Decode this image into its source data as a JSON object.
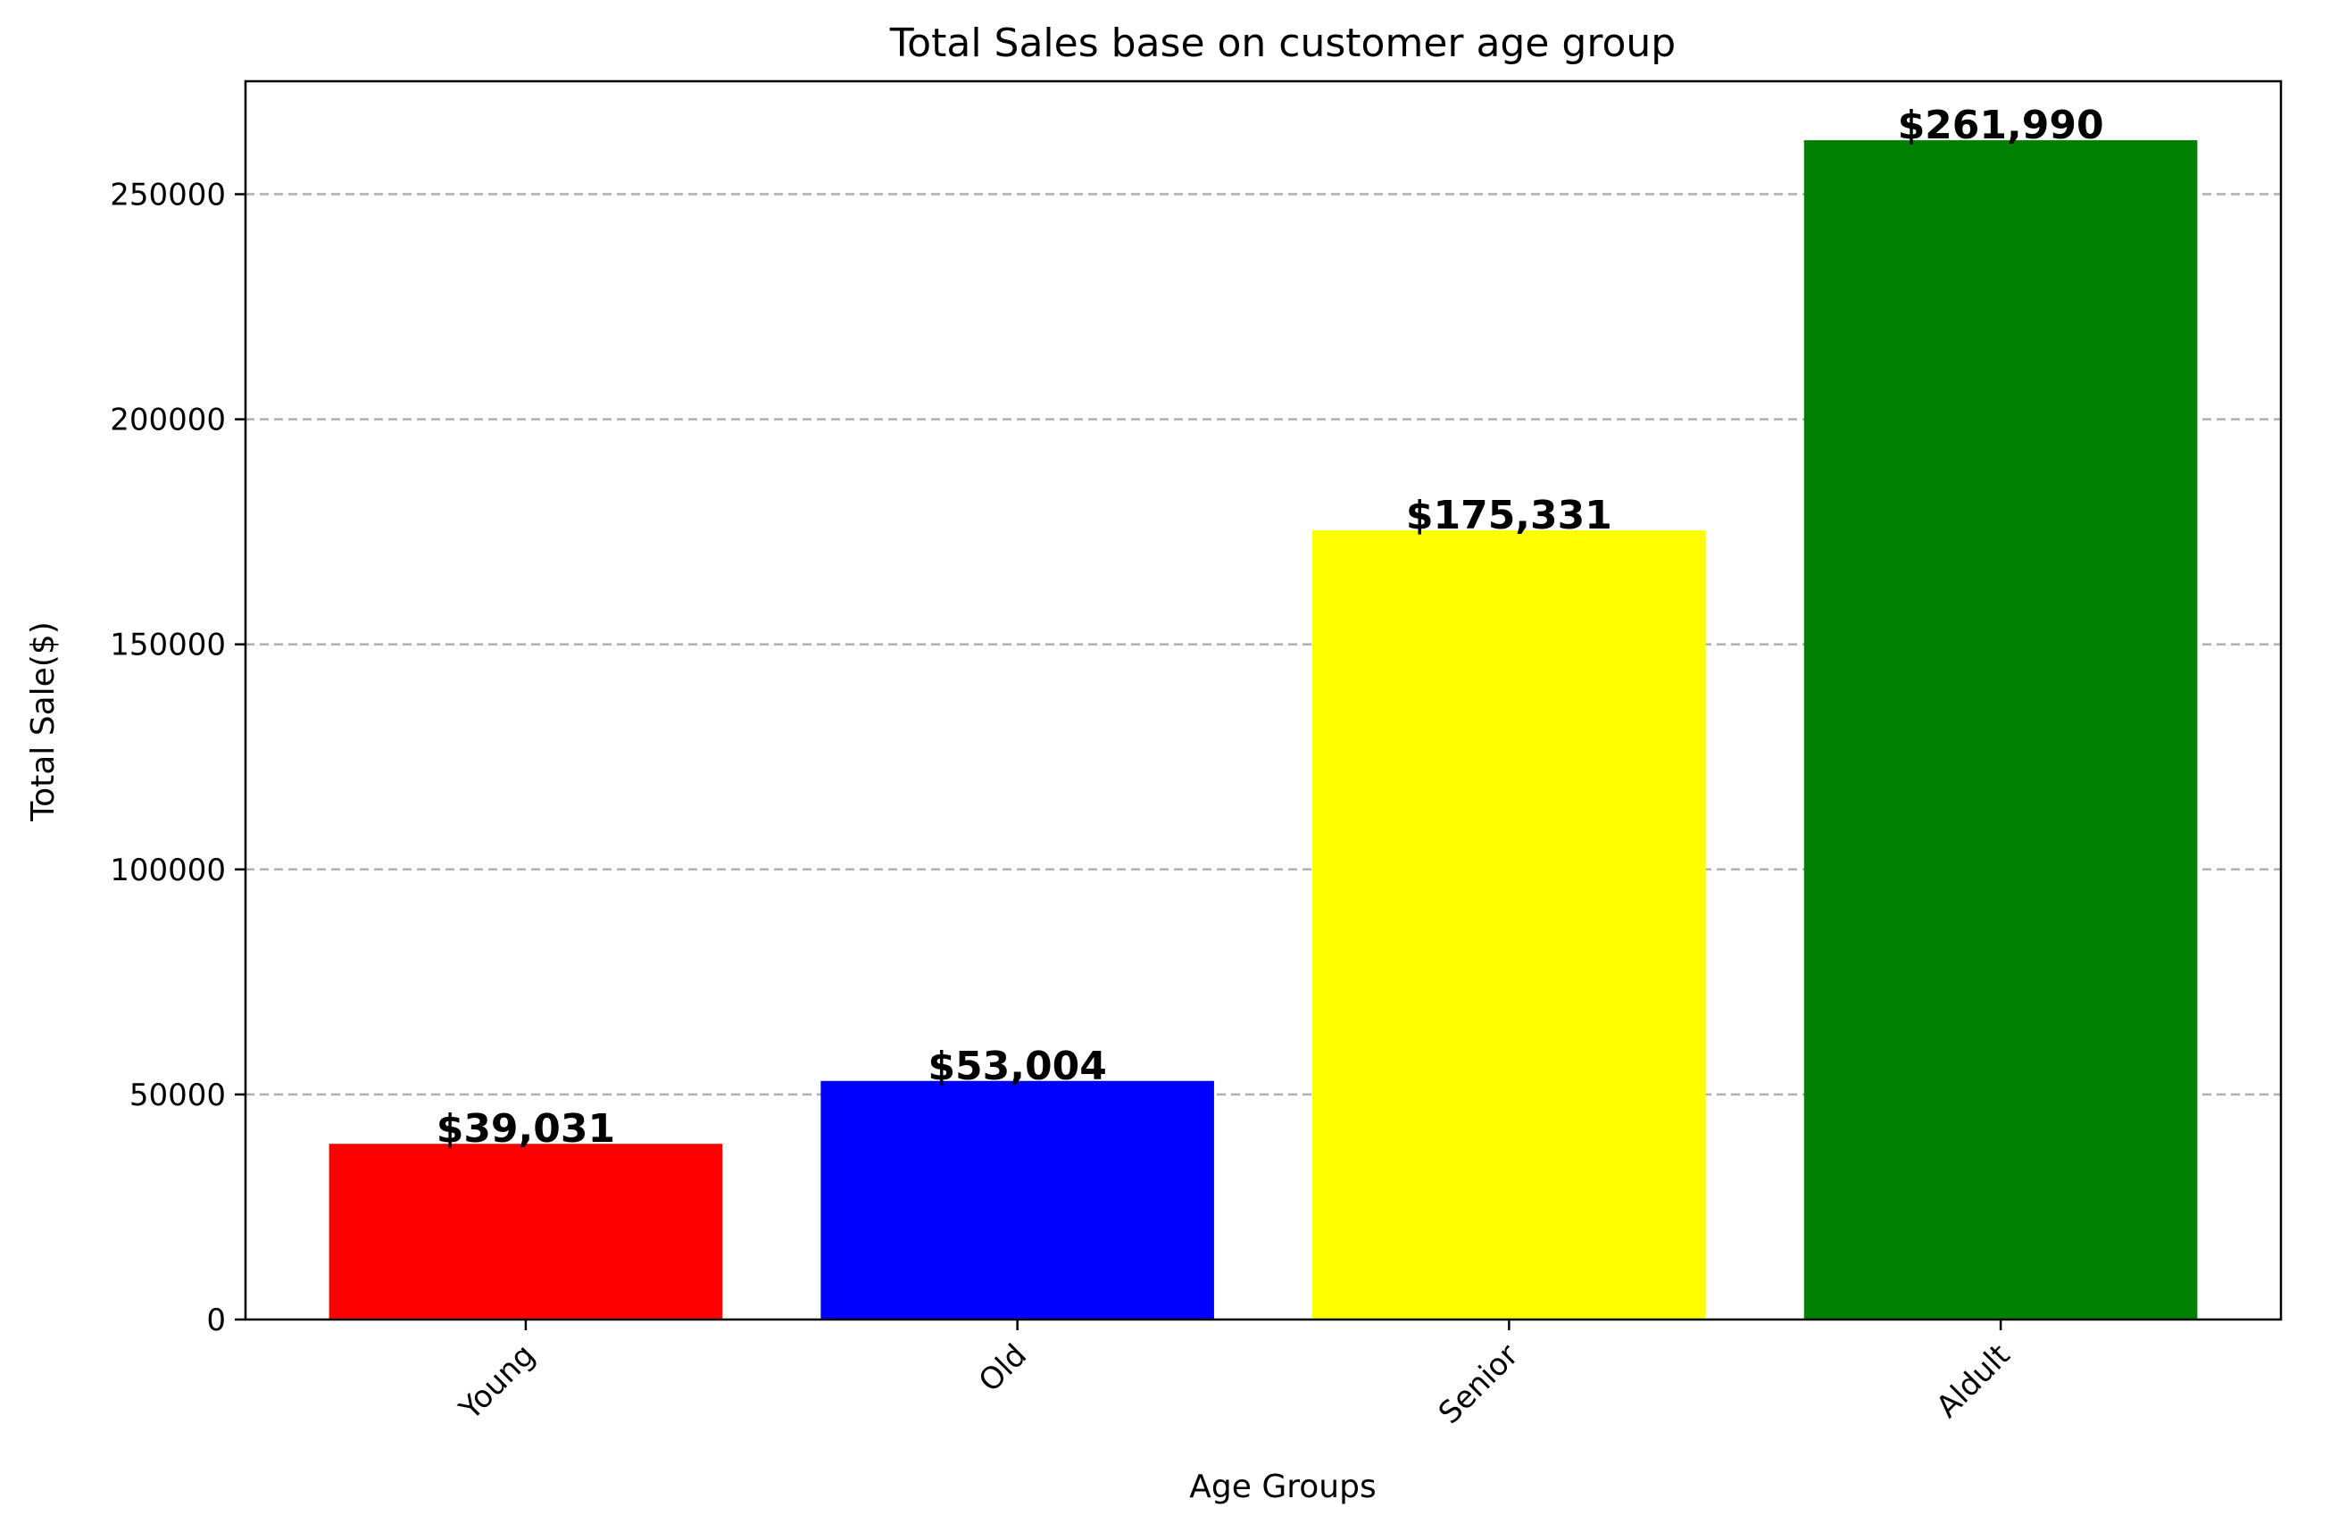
{
  "chart_data": {
    "type": "bar",
    "title": "Total Sales base on customer age group",
    "xlabel": "Age Groups",
    "ylabel": "Total Sale($)",
    "categories": [
      "Young",
      "Old",
      "Senior",
      "Aldult"
    ],
    "values": [
      39031,
      53004,
      175331,
      261990
    ],
    "data_labels": [
      "$39,031",
      "$53,004",
      "$175,331",
      "$261,990"
    ],
    "colors": [
      "#ff0000",
      "#0000ff",
      "#ffff00",
      "#008000"
    ],
    "ylim": [
      0,
      275095
    ],
    "yticks": [
      0,
      50000,
      100000,
      150000,
      200000,
      250000
    ],
    "ytick_labels": [
      "0",
      "50000",
      "100000",
      "150000",
      "200000",
      "250000"
    ],
    "grid": "y-dashed",
    "xtick_rotation": 45
  }
}
